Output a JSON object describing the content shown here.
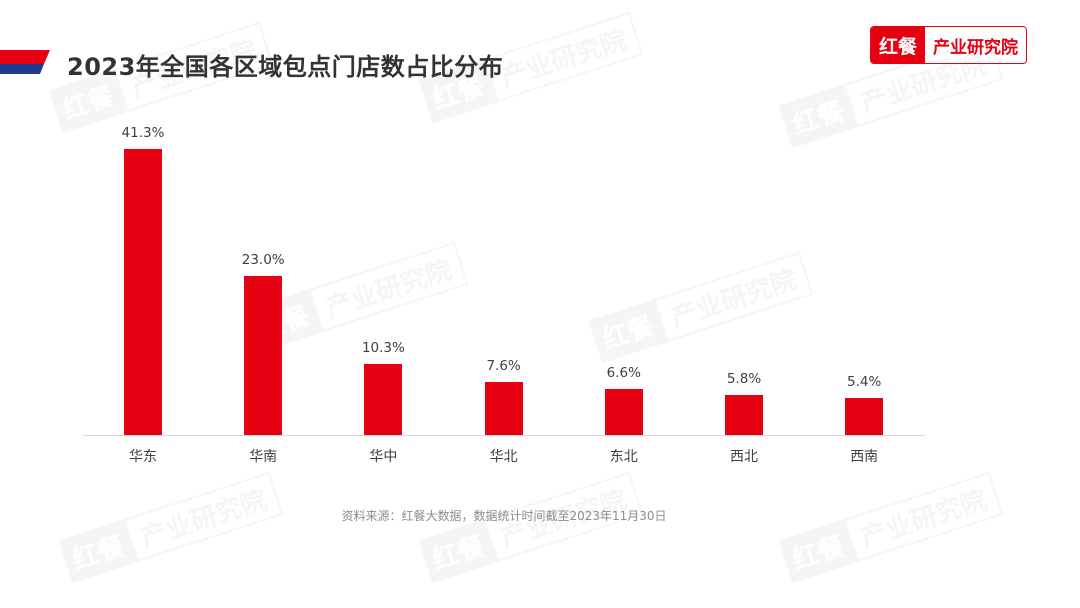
{
  "header": {
    "title": "2023年全国各区域包点门店数占比分布",
    "banner_colors": {
      "red": "#e60012",
      "blue": "#1f3a93"
    }
  },
  "logo": {
    "brand": "红餐",
    "subtitle": "产业研究院",
    "color": "#e60012"
  },
  "watermark": {
    "brand": "红餐",
    "subtitle": "产业研究院"
  },
  "chart_data": {
    "type": "bar",
    "title": "2023年全国各区域包点门店数占比分布",
    "xlabel": "",
    "ylabel": "",
    "categories": [
      "华东",
      "华南",
      "华中",
      "华北",
      "东北",
      "西北",
      "西南"
    ],
    "values": [
      41.3,
      23.0,
      10.3,
      7.6,
      6.6,
      5.8,
      5.4
    ],
    "labels": [
      "41.3%",
      "23.0%",
      "10.3%",
      "7.6%",
      "6.6%",
      "5.8%",
      "5.4%"
    ],
    "unit": "%",
    "bar_color": "#e60012",
    "grid": false,
    "legend": null,
    "ylim": [
      0,
      45
    ]
  },
  "footer": {
    "source": "资料来源：红餐大数据，数据统计时间截至2023年11月30日"
  }
}
